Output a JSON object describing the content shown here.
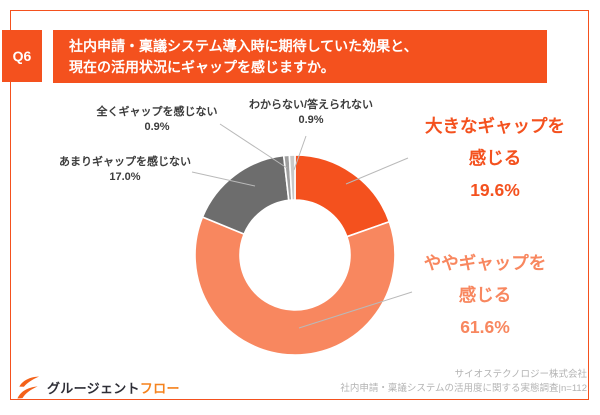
{
  "header": {
    "q_label": "Q6",
    "title_line1": "社内申請・稟議システム導入時に期待していた効果と、",
    "title_line2": "現在の活用状況にギャップを感じますか。"
  },
  "chart_data": {
    "type": "pie",
    "donut": true,
    "title": "社内申請・稟議システム導入時に期待していた効果と、現在の活用状況にギャップを感じますか。",
    "categories": [
      "大きなギャップを感じる",
      "ややギャップを感じる",
      "あまりギャップを感じない",
      "全くギャップを感じない",
      "わからない/答えられない"
    ],
    "values": [
      19.6,
      61.6,
      17.0,
      0.9,
      0.9
    ],
    "unit": "%",
    "colors": [
      "#F4511E",
      "#F8875F",
      "#6D6D6D",
      "#9E9E9E",
      "#C8C8C8"
    ],
    "start_angle_deg": -90,
    "direction": "clockwise",
    "legend": "none (direct callout labels with leader lines)",
    "sample_size": "n=112"
  },
  "callouts": {
    "big": {
      "line1": "大きなギャップを",
      "line2": "感じる",
      "value": "19.6%"
    },
    "some": {
      "line1": "ややギャップを",
      "line2": "感じる",
      "value": "61.6%"
    },
    "little": {
      "label": "あまりギャップを感じない",
      "value": "17.0%"
    },
    "none": {
      "label": "全くギャップを感じない",
      "value": "0.9%"
    },
    "unknown": {
      "label": "わからない/答えられない",
      "value": "0.9%"
    }
  },
  "footer": {
    "logo_dark": "グルージェント",
    "logo_orange": "フロー",
    "source_line1": "サイオステクノロジー株式会社",
    "source_line2": "社内申請・稟議システムの活用度に関する実態調査|n=112"
  },
  "colors": {
    "accent": "#F4511E",
    "salmon": "#F8875F",
    "gray_dark": "#6D6D6D",
    "gray_mid": "#9E9E9E",
    "gray_light": "#C8C8C8",
    "leader_line": "#B9B9B9",
    "source_text": "#B3B3B3",
    "logo_orange": "#F5831E"
  }
}
